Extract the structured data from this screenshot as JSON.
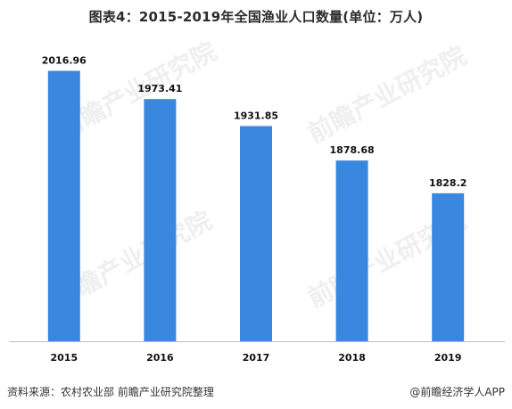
{
  "page": {
    "title": "图表4：2015-2019年全国渔业人口数量(单位：万人)",
    "source": "资料来源：农村农业部 前瞻产业研究院整理",
    "credit": "@前瞻经济学人APP",
    "watermark": "前瞻产业研究院"
  },
  "colors": {
    "bar": "#3a87e0",
    "axis": "#bfbfbf",
    "label": "#111111",
    "watermark": "#e2e2e2"
  },
  "chart_data": {
    "type": "bar",
    "title": "图表4：2015-2019年全国渔业人口数量(单位：万人)",
    "categories": [
      "2015",
      "2016",
      "2017",
      "2018",
      "2019"
    ],
    "values": [
      2016.96,
      1973.41,
      1931.85,
      1878.68,
      1828.2
    ],
    "value_labels": [
      "2016.96",
      "1973.41",
      "1931.85",
      "1878.68",
      "1828.2"
    ],
    "xlabel": "",
    "ylabel": "",
    "ylim": [
      1600,
      2030
    ],
    "grid": false,
    "legend": "none"
  }
}
